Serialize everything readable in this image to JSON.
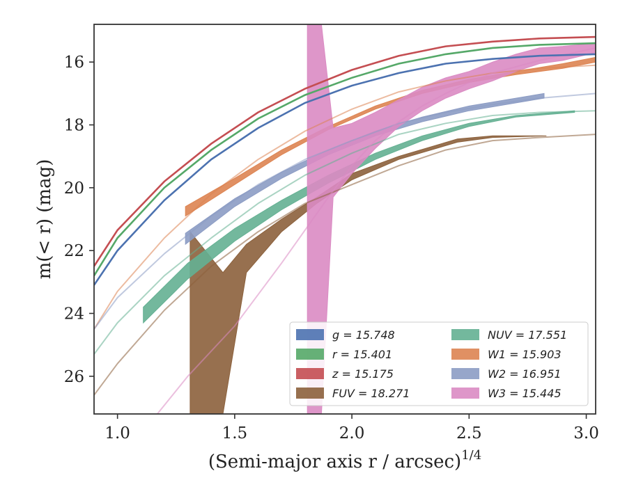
{
  "chart_data": {
    "type": "line",
    "xlabel": "(Semi-major axis r / arcsec)",
    "xlabel_exp": "1/4",
    "ylabel": "m(< r) (mag)",
    "xlim": [
      0.9,
      3.04
    ],
    "ylim": [
      27.2,
      14.8
    ],
    "y_inverted": true,
    "x_ticks": [
      1.0,
      1.5,
      2.0,
      2.5,
      3.0
    ],
    "x_tick_labels": [
      "1.0",
      "1.5",
      "2.0",
      "2.5",
      "3.0"
    ],
    "y_ticks": [
      16,
      18,
      20,
      22,
      24,
      26
    ],
    "y_tick_labels": [
      "16",
      "18",
      "20",
      "22",
      "24",
      "26"
    ],
    "grid": false,
    "legend_placement": "lower-right",
    "series": [
      {
        "name": "g = 15.748",
        "band": "g",
        "total": "15.748",
        "color": "#4c72b0",
        "x": [
          0.9,
          1.0,
          1.2,
          1.4,
          1.6,
          1.8,
          2.0,
          2.2,
          2.4,
          2.6,
          2.8,
          3.04
        ],
        "y": [
          23.1,
          22.0,
          20.4,
          19.1,
          18.1,
          17.3,
          16.75,
          16.35,
          16.05,
          15.9,
          15.8,
          15.75
        ],
        "band_x": [],
        "band_lo": [],
        "band_hi": []
      },
      {
        "name": "r = 15.401",
        "band": "r",
        "total": "15.401",
        "color": "#55a868",
        "x": [
          0.9,
          1.0,
          1.2,
          1.4,
          1.6,
          1.8,
          2.0,
          2.2,
          2.4,
          2.6,
          2.8,
          3.04
        ],
        "y": [
          22.8,
          21.6,
          20.0,
          18.8,
          17.8,
          17.05,
          16.5,
          16.05,
          15.75,
          15.55,
          15.45,
          15.4
        ],
        "band_x": [],
        "band_lo": [],
        "band_hi": []
      },
      {
        "name": "z = 15.175",
        "band": "z",
        "total": "15.175",
        "color": "#c44e52",
        "x": [
          0.9,
          1.0,
          1.2,
          1.4,
          1.6,
          1.8,
          2.0,
          2.2,
          2.4,
          2.6,
          2.8,
          3.04
        ],
        "y": [
          22.5,
          21.35,
          19.8,
          18.6,
          17.6,
          16.85,
          16.25,
          15.8,
          15.5,
          15.35,
          15.25,
          15.2
        ],
        "band_x": [],
        "band_lo": [],
        "band_hi": []
      },
      {
        "name": "FUV = 18.271",
        "band": "FUV",
        "total": "18.271",
        "color": "#8c613c",
        "x": [
          0.9,
          1.0,
          1.2,
          1.4,
          1.6,
          1.8,
          2.0,
          2.2,
          2.4,
          2.6,
          2.8,
          3.04
        ],
        "y": [
          26.6,
          25.6,
          23.9,
          22.5,
          21.4,
          20.5,
          19.9,
          19.3,
          18.8,
          18.5,
          18.4,
          18.3
        ],
        "band_x": [
          1.31,
          1.45,
          1.55,
          1.7,
          1.85,
          2.0,
          2.2,
          2.45,
          2.6,
          2.83
        ],
        "band_lo": [
          27.2,
          27.2,
          22.7,
          21.4,
          20.5,
          19.75,
          19.1,
          18.55,
          18.4,
          18.35
        ],
        "band_hi": [
          21.4,
          22.7,
          21.8,
          21.0,
          20.3,
          19.55,
          19.0,
          18.45,
          18.35,
          18.35
        ]
      },
      {
        "name": "NUV = 17.551",
        "band": "NUV",
        "total": "17.551",
        "color": "#64b092",
        "x": [
          0.9,
          1.0,
          1.2,
          1.4,
          1.6,
          1.8,
          2.0,
          2.2,
          2.4,
          2.6,
          2.8,
          3.04
        ],
        "y": [
          25.3,
          24.3,
          22.8,
          21.6,
          20.5,
          19.6,
          18.9,
          18.3,
          17.95,
          17.7,
          17.6,
          17.55
        ],
        "band_x": [
          1.11,
          1.3,
          1.5,
          1.7,
          1.9,
          2.1,
          2.3,
          2.5,
          2.7,
          2.95
        ],
        "band_lo": [
          24.3,
          22.9,
          21.7,
          20.7,
          19.85,
          19.1,
          18.5,
          18.05,
          17.75,
          17.6
        ],
        "band_hi": [
          23.8,
          22.4,
          21.3,
          20.4,
          19.6,
          18.9,
          18.35,
          17.95,
          17.7,
          17.55
        ]
      },
      {
        "name": "W1 = 15.903",
        "band": "W1",
        "total": "15.903",
        "color": "#dd8452",
        "x": [
          0.9,
          1.0,
          1.2,
          1.4,
          1.6,
          1.8,
          2.0,
          2.2,
          2.4,
          2.6,
          2.8,
          3.04
        ],
        "y": [
          24.5,
          23.3,
          21.6,
          20.2,
          19.1,
          18.2,
          17.5,
          16.95,
          16.6,
          16.35,
          16.2,
          16.1
        ],
        "band_x": [
          1.29,
          1.5,
          1.7,
          1.9,
          2.1,
          2.3,
          2.5,
          2.7,
          2.9,
          3.04
        ],
        "band_lo": [
          20.9,
          19.9,
          18.95,
          18.15,
          17.5,
          17.0,
          16.65,
          16.4,
          16.2,
          16.0
        ],
        "band_hi": [
          20.6,
          19.7,
          18.8,
          18.05,
          17.4,
          16.9,
          16.55,
          16.3,
          16.05,
          15.85
        ]
      },
      {
        "name": "W2 = 16.951",
        "band": "W2",
        "total": "16.951",
        "color": "#8c9cc4",
        "x": [
          0.9,
          1.0,
          1.2,
          1.4,
          1.6,
          1.8,
          2.0,
          2.2,
          2.4,
          2.6,
          2.8,
          3.04
        ],
        "y": [
          24.5,
          23.5,
          22.1,
          20.9,
          19.9,
          19.1,
          18.5,
          17.95,
          17.6,
          17.35,
          17.15,
          17.0
        ],
        "band_x": [
          1.29,
          1.5,
          1.7,
          1.9,
          2.1,
          2.3,
          2.5,
          2.7,
          2.82
        ],
        "band_lo": [
          21.8,
          20.6,
          19.7,
          18.95,
          18.35,
          17.9,
          17.55,
          17.3,
          17.15
        ],
        "band_hi": [
          21.45,
          20.35,
          19.5,
          18.8,
          18.2,
          17.75,
          17.4,
          17.15,
          17.0
        ]
      },
      {
        "name": "W3 = 15.445",
        "band": "W3",
        "total": "15.445",
        "color": "#da8bc3",
        "x": [
          1.17,
          1.3,
          1.5,
          1.7,
          1.9,
          2.0,
          2.1,
          2.2,
          2.3,
          2.4,
          2.5,
          2.6,
          2.8,
          3.04
        ],
        "y": [
          27.2,
          26.0,
          24.4,
          22.4,
          20.3,
          19.3,
          18.5,
          17.9,
          17.4,
          17.0,
          16.65,
          16.35,
          15.95,
          15.55
        ],
        "band_x": [
          1.81,
          1.85,
          1.87,
          1.92,
          2.0,
          2.1,
          2.2,
          2.3,
          2.4,
          2.5,
          2.6,
          2.7,
          2.8,
          2.9,
          3.04
        ],
        "band_lo": [
          27.2,
          27.2,
          27.2,
          20.3,
          19.55,
          18.75,
          18.05,
          17.55,
          17.15,
          16.85,
          16.6,
          16.3,
          16.05,
          15.95,
          15.7
        ],
        "band_hi": [
          14.8,
          14.8,
          14.8,
          18.1,
          17.95,
          17.6,
          17.2,
          16.8,
          16.5,
          16.3,
          16.0,
          15.75,
          15.55,
          15.5,
          15.4
        ]
      }
    ]
  }
}
